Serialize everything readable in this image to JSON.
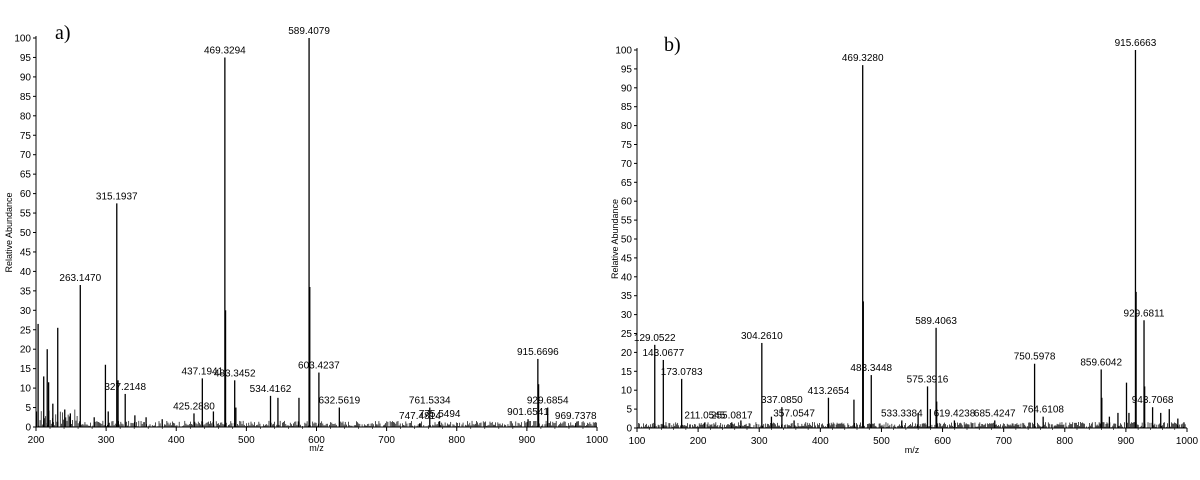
{
  "chart_data": [
    {
      "type": "bar",
      "panel_label": "a)",
      "xlabel": "m/z",
      "ylabel": "Relative Abundance",
      "xlim": [
        200,
        1000
      ],
      "ylim": [
        0,
        100
      ],
      "x_ticks": [
        200,
        300,
        400,
        500,
        600,
        700,
        800,
        900,
        1000
      ],
      "y_ticks": [
        0,
        5,
        10,
        15,
        20,
        25,
        30,
        35,
        40,
        45,
        50,
        55,
        60,
        65,
        70,
        75,
        80,
        85,
        90,
        95,
        100
      ],
      "peaks": [
        {
          "mz": 203.0,
          "ab": 26.5
        },
        {
          "mz": 211.0,
          "ab": 13.0
        },
        {
          "mz": 216.0,
          "ab": 20.0
        },
        {
          "mz": 218.0,
          "ab": 11.5
        },
        {
          "mz": 224.0,
          "ab": 6.0
        },
        {
          "mz": 231.0,
          "ab": 25.5
        },
        {
          "mz": 241.0,
          "ab": 4.5
        },
        {
          "mz": 249.0,
          "ab": 3.5
        },
        {
          "mz": 263.147,
          "ab": 36.5,
          "label": "263.1470"
        },
        {
          "mz": 283.0,
          "ab": 2.5
        },
        {
          "mz": 299.0,
          "ab": 16.0
        },
        {
          "mz": 303.0,
          "ab": 4.0
        },
        {
          "mz": 315.1937,
          "ab": 57.5,
          "label": "315.1937"
        },
        {
          "mz": 317.0,
          "ab": 12.0
        },
        {
          "mz": 327.2148,
          "ab": 8.5,
          "label": "327.2148"
        },
        {
          "mz": 341.0,
          "ab": 3.0
        },
        {
          "mz": 357.0,
          "ab": 2.5
        },
        {
          "mz": 380.0,
          "ab": 2.0
        },
        {
          "mz": 425.288,
          "ab": 3.5,
          "label": "425.2880"
        },
        {
          "mz": 437.1941,
          "ab": 12.5,
          "label": "437.1941"
        },
        {
          "mz": 453.0,
          "ab": 4.0
        },
        {
          "mz": 469.3294,
          "ab": 95.0,
          "label": "469.3294"
        },
        {
          "mz": 470.3,
          "ab": 30.0
        },
        {
          "mz": 483.3452,
          "ab": 12.0,
          "label": "483.3452"
        },
        {
          "mz": 485.0,
          "ab": 5.0
        },
        {
          "mz": 534.4162,
          "ab": 8.0,
          "label": "534.4162"
        },
        {
          "mz": 545.0,
          "ab": 7.5
        },
        {
          "mz": 575.0,
          "ab": 7.5
        },
        {
          "mz": 589.4079,
          "ab": 100.0,
          "label": "589.4079"
        },
        {
          "mz": 590.4,
          "ab": 36.0
        },
        {
          "mz": 603.4237,
          "ab": 14.0,
          "label": "603.4237"
        },
        {
          "mz": 632.5619,
          "ab": 5.0,
          "label": "632.5619"
        },
        {
          "mz": 747.4814,
          "ab": 1.0,
          "label": "747.4814"
        },
        {
          "mz": 761.5334,
          "ab": 5.0,
          "label": "761.5334"
        },
        {
          "mz": 775.5494,
          "ab": 1.5,
          "label": "775.5494"
        },
        {
          "mz": 901.6541,
          "ab": 2.0,
          "label": "901.6541"
        },
        {
          "mz": 915.6696,
          "ab": 17.5,
          "label": "915.6696"
        },
        {
          "mz": 916.7,
          "ab": 11.0
        },
        {
          "mz": 929.6854,
          "ab": 5.0,
          "label": "929.6854"
        },
        {
          "mz": 969.7378,
          "ab": 1.0,
          "label": "969.7378"
        }
      ]
    },
    {
      "type": "bar",
      "panel_label": "b)",
      "xlabel": "m/z",
      "ylabel": "Relative Abundance",
      "xlim": [
        100,
        1000
      ],
      "ylim": [
        0,
        100
      ],
      "x_ticks": [
        100,
        200,
        300,
        400,
        500,
        600,
        700,
        800,
        900,
        1000
      ],
      "y_ticks": [
        0,
        5,
        10,
        15,
        20,
        25,
        30,
        35,
        40,
        45,
        50,
        55,
        60,
        65,
        70,
        75,
        80,
        85,
        90,
        95,
        100
      ],
      "peaks": [
        {
          "mz": 129.0522,
          "ab": 22.0,
          "label": "129.0522"
        },
        {
          "mz": 143.0677,
          "ab": 18.0,
          "label": "143.0677"
        },
        {
          "mz": 173.0783,
          "ab": 13.0,
          "label": "173.0783"
        },
        {
          "mz": 211.0545,
          "ab": 1.5,
          "label": "211.0545"
        },
        {
          "mz": 255.0817,
          "ab": 1.5,
          "label": "255.0817"
        },
        {
          "mz": 270.0,
          "ab": 2.0
        },
        {
          "mz": 304.261,
          "ab": 22.5,
          "label": "304.2610"
        },
        {
          "mz": 320.0,
          "ab": 3.0
        },
        {
          "mz": 337.085,
          "ab": 5.5,
          "label": "337.0850"
        },
        {
          "mz": 357.0547,
          "ab": 2.0,
          "label": "357.0547"
        },
        {
          "mz": 413.2654,
          "ab": 8.0,
          "label": "413.2654"
        },
        {
          "mz": 455.0,
          "ab": 7.5
        },
        {
          "mz": 469.328,
          "ab": 96.0,
          "label": "469.3280"
        },
        {
          "mz": 470.3,
          "ab": 33.5
        },
        {
          "mz": 483.3448,
          "ab": 14.0,
          "label": "483.3448"
        },
        {
          "mz": 533.3384,
          "ab": 2.0,
          "label": "533.3384"
        },
        {
          "mz": 560.0,
          "ab": 4.0
        },
        {
          "mz": 575.3916,
          "ab": 11.0,
          "label": "575.3916"
        },
        {
          "mz": 580.0,
          "ab": 5.0
        },
        {
          "mz": 589.4063,
          "ab": 26.5,
          "label": "589.4063"
        },
        {
          "mz": 590.4,
          "ab": 7.0
        },
        {
          "mz": 619.4238,
          "ab": 2.0,
          "label": "619.4238"
        },
        {
          "mz": 685.4247,
          "ab": 2.0,
          "label": "685.4247"
        },
        {
          "mz": 750.5978,
          "ab": 17.0,
          "label": "750.5978"
        },
        {
          "mz": 764.6108,
          "ab": 3.0,
          "label": "764.6108"
        },
        {
          "mz": 859.6042,
          "ab": 15.5,
          "label": "859.6042"
        },
        {
          "mz": 860.6,
          "ab": 8.0
        },
        {
          "mz": 873.0,
          "ab": 3.0
        },
        {
          "mz": 887.0,
          "ab": 4.0
        },
        {
          "mz": 901.0,
          "ab": 12.0
        },
        {
          "mz": 905.0,
          "ab": 4.0
        },
        {
          "mz": 915.6663,
          "ab": 100.0,
          "label": "915.6663"
        },
        {
          "mz": 916.7,
          "ab": 36.0
        },
        {
          "mz": 929.6811,
          "ab": 28.5,
          "label": "929.6811"
        },
        {
          "mz": 930.7,
          "ab": 11.0
        },
        {
          "mz": 943.7068,
          "ab": 5.5,
          "label": "943.7068"
        },
        {
          "mz": 957.0,
          "ab": 4.0
        },
        {
          "mz": 971.0,
          "ab": 5.0
        },
        {
          "mz": 985.0,
          "ab": 2.5
        },
        {
          "mz": 995.0,
          "ab": 1.5
        }
      ]
    }
  ]
}
